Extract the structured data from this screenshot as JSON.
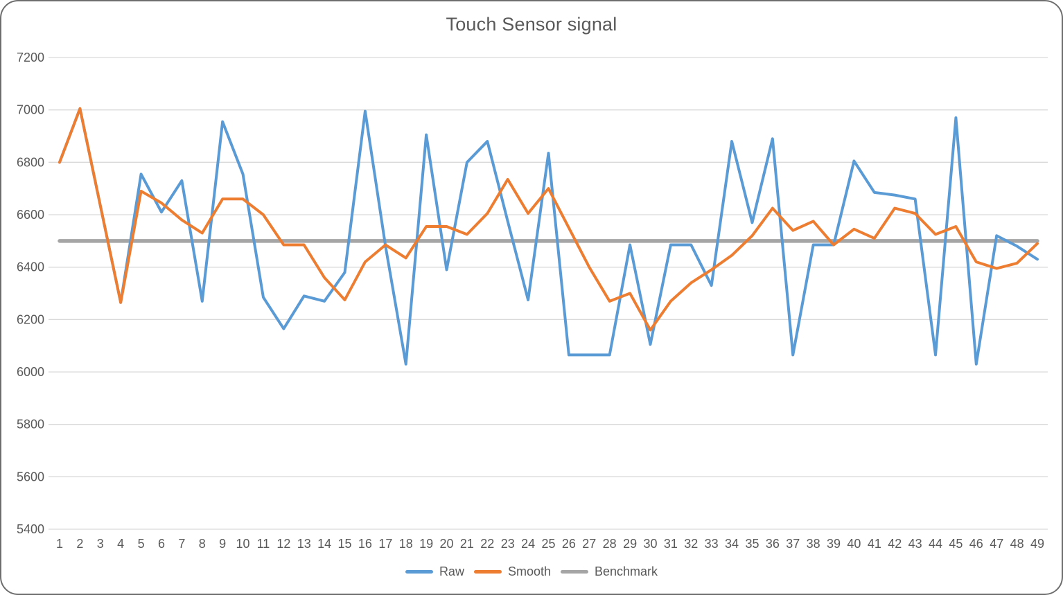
{
  "chart_data": {
    "type": "line",
    "title": "Touch Sensor signal",
    "categories": [
      1,
      2,
      3,
      4,
      5,
      6,
      7,
      8,
      9,
      10,
      11,
      12,
      13,
      14,
      15,
      16,
      17,
      18,
      19,
      20,
      21,
      22,
      23,
      24,
      25,
      26,
      27,
      28,
      29,
      30,
      31,
      32,
      33,
      34,
      35,
      36,
      37,
      38,
      39,
      40,
      41,
      42,
      43,
      44,
      45,
      46,
      47,
      48,
      49
    ],
    "series": [
      {
        "name": "Raw",
        "color": "#5B9BD5",
        "values": [
          6800,
          7005,
          6635,
          6265,
          6755,
          6610,
          6730,
          6270,
          6955,
          6755,
          6285,
          6165,
          6290,
          6270,
          6380,
          6995,
          6480,
          6030,
          6905,
          6390,
          6800,
          6880,
          6575,
          6275,
          6835,
          6065,
          6065,
          6065,
          6485,
          6105,
          6485,
          6485,
          6330,
          6880,
          6570,
          6890,
          6065,
          6485,
          6485,
          6805,
          6685,
          6675,
          6660,
          6065,
          6970,
          6030,
          6520,
          6480,
          6430
        ]
      },
      {
        "name": "Smooth",
        "color": "#ED7D31",
        "values": [
          6800,
          7005,
          6635,
          6265,
          6690,
          6645,
          6580,
          6530,
          6660,
          6660,
          6600,
          6485,
          6485,
          6360,
          6275,
          6420,
          6485,
          6435,
          6555,
          6555,
          6525,
          6605,
          6735,
          6605,
          6700,
          6550,
          6400,
          6270,
          6300,
          6160,
          6270,
          6340,
          6390,
          6445,
          6520,
          6625,
          6540,
          6575,
          6485,
          6545,
          6510,
          6625,
          6605,
          6525,
          6555,
          6420,
          6395,
          6415,
          6490
        ]
      },
      {
        "name": "Benchmark",
        "color": "#A5A5A5",
        "constant": 6500
      }
    ],
    "ylim": [
      5400,
      7200
    ],
    "yticks": [
      5400,
      5600,
      5800,
      6000,
      6200,
      6400,
      6600,
      6800,
      7000,
      7200
    ],
    "grid": true,
    "gridline_color": "#D9D9D9",
    "axis_text_color": "#595959",
    "legend_position": "bottom"
  }
}
